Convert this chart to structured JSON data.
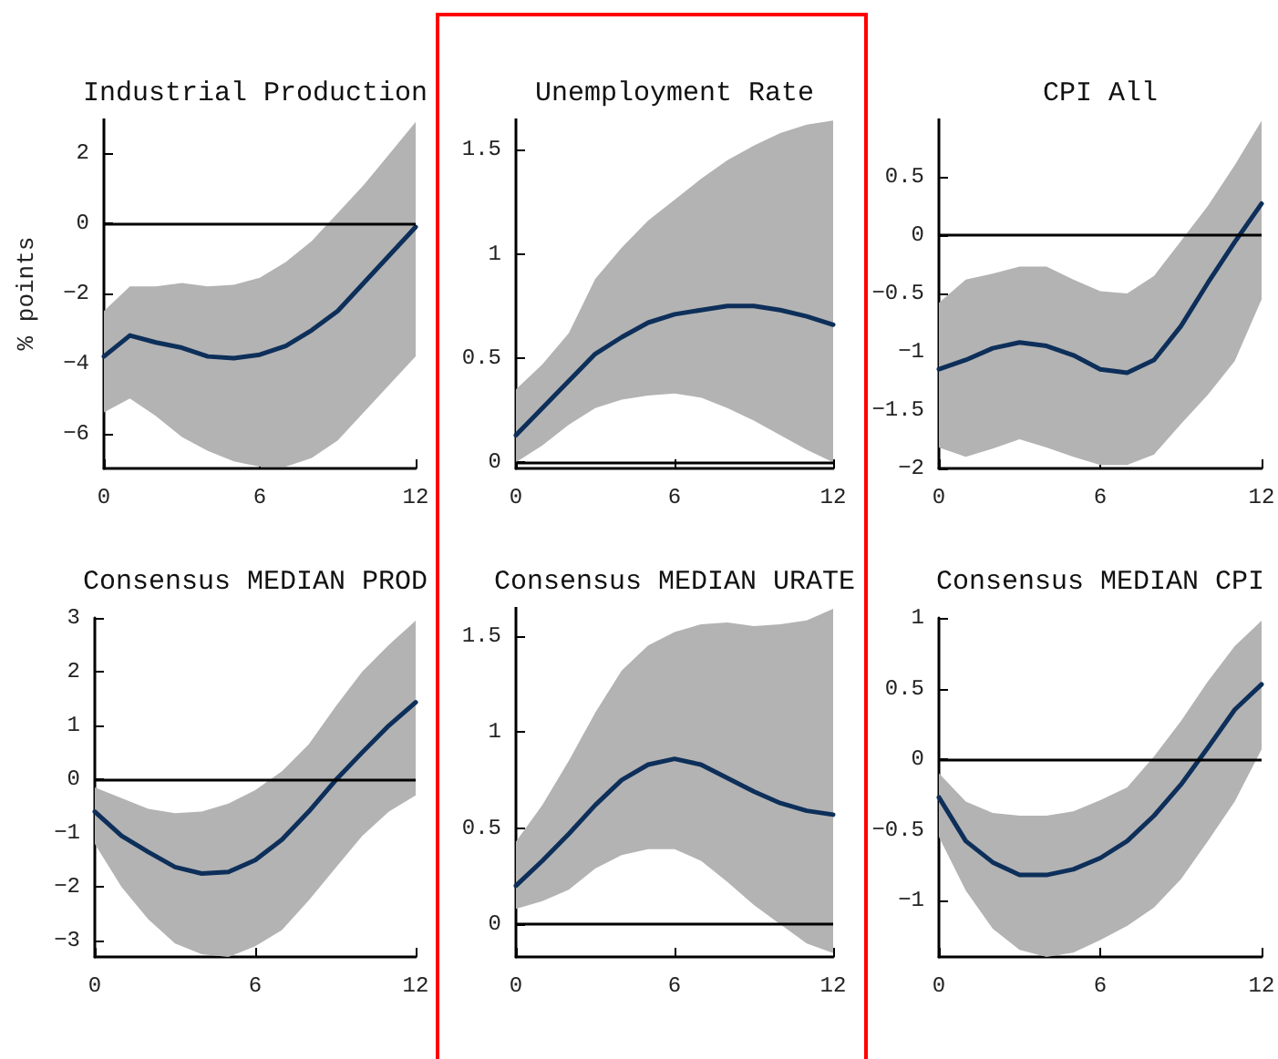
{
  "chart_data": [
    {
      "type": "line",
      "title": "Industrial Production",
      "ylabel": "% points",
      "x": [
        0,
        1,
        2,
        3,
        4,
        5,
        6,
        7,
        8,
        9,
        10,
        11,
        12
      ],
      "xlim": [
        0,
        12
      ],
      "xticks": [
        0,
        6,
        12
      ],
      "ylim": [
        -7,
        3
      ],
      "yticks": [
        -6,
        -4,
        -2,
        0,
        2
      ],
      "grid": false,
      "marker": "none",
      "line_style": "solid",
      "series": [
        {
          "color": "#0d2f5a",
          "values": [
            -3.8,
            -3.2,
            -3.4,
            -3.55,
            -3.8,
            -3.85,
            -3.75,
            -3.5,
            -3.05,
            -2.5,
            -1.7,
            -0.9,
            -0.1
          ],
          "upper": [
            -2.5,
            -1.8,
            -1.8,
            -1.7,
            -1.8,
            -1.75,
            -1.55,
            -1.1,
            -0.5,
            0.3,
            1.1,
            2.0,
            2.9
          ],
          "lower": [
            -5.4,
            -5.0,
            -5.5,
            -6.1,
            -6.5,
            -6.8,
            -6.95,
            -6.95,
            -6.7,
            -6.2,
            -5.4,
            -4.6,
            -3.8
          ]
        }
      ],
      "ref_lines": [
        {
          "axis": "y",
          "value": 0,
          "color": "#000000"
        }
      ]
    },
    {
      "type": "line",
      "title": "Unemployment Rate",
      "x": [
        0,
        1,
        2,
        3,
        4,
        5,
        6,
        7,
        8,
        9,
        10,
        11,
        12
      ],
      "xlim": [
        0,
        12
      ],
      "xticks": [
        0,
        6,
        12
      ],
      "ylim": [
        -0.03,
        1.65
      ],
      "yticks": [
        0,
        0.5,
        1,
        1.5
      ],
      "grid": false,
      "marker": "none",
      "line_style": "solid",
      "series": [
        {
          "color": "#0d2f5a",
          "values": [
            0.13,
            0.26,
            0.39,
            0.52,
            0.6,
            0.67,
            0.71,
            0.73,
            0.75,
            0.75,
            0.73,
            0.7,
            0.66
          ],
          "upper": [
            0.35,
            0.47,
            0.62,
            0.88,
            1.03,
            1.16,
            1.26,
            1.36,
            1.45,
            1.52,
            1.58,
            1.62,
            1.64
          ],
          "lower": [
            0.0,
            0.08,
            0.18,
            0.26,
            0.3,
            0.32,
            0.33,
            0.31,
            0.26,
            0.2,
            0.13,
            0.06,
            0.0
          ]
        }
      ],
      "ref_lines": [
        {
          "axis": "y",
          "value": 0,
          "color": "#000000"
        }
      ]
    },
    {
      "type": "line",
      "title": "CPI All",
      "x": [
        0,
        1,
        2,
        3,
        4,
        5,
        6,
        7,
        8,
        9,
        10,
        11,
        12
      ],
      "xlim": [
        0,
        12
      ],
      "xticks": [
        0,
        6,
        12
      ],
      "ylim": [
        -2,
        1
      ],
      "yticks": [
        -2,
        -1.5,
        -1,
        -0.5,
        0,
        0.5
      ],
      "grid": false,
      "marker": "none",
      "line_style": "solid",
      "series": [
        {
          "color": "#0d2f5a",
          "values": [
            -1.15,
            -1.07,
            -0.97,
            -0.92,
            -0.95,
            -1.03,
            -1.15,
            -1.18,
            -1.07,
            -0.78,
            -0.41,
            -0.06,
            0.27
          ],
          "upper": [
            -0.58,
            -0.38,
            -0.33,
            -0.27,
            -0.27,
            -0.38,
            -0.48,
            -0.5,
            -0.35,
            -0.05,
            0.25,
            0.6,
            0.98
          ],
          "lower": [
            -1.82,
            -1.9,
            -1.83,
            -1.75,
            -1.82,
            -1.9,
            -1.97,
            -1.97,
            -1.88,
            -1.62,
            -1.37,
            -1.08,
            -0.55
          ]
        }
      ],
      "ref_lines": [
        {
          "axis": "y",
          "value": 0,
          "color": "#000000"
        }
      ]
    },
    {
      "type": "line",
      "title": "Consensus MEDIAN PROD",
      "x": [
        0,
        1,
        2,
        3,
        4,
        5,
        6,
        7,
        8,
        9,
        10,
        11,
        12
      ],
      "xlim": [
        0,
        12
      ],
      "xticks": [
        0,
        6,
        12
      ],
      "ylim": [
        -3.3,
        3
      ],
      "yticks": [
        -3,
        -2,
        -1,
        0,
        1,
        2,
        3
      ],
      "grid": false,
      "marker": "none",
      "line_style": "solid",
      "series": [
        {
          "color": "#0d2f5a",
          "values": [
            -0.6,
            -1.05,
            -1.35,
            -1.63,
            -1.75,
            -1.72,
            -1.5,
            -1.12,
            -0.6,
            -0.02,
            0.5,
            1.0,
            1.43
          ],
          "upper": [
            -0.15,
            -0.35,
            -0.55,
            -0.63,
            -0.6,
            -0.45,
            -0.2,
            0.15,
            0.65,
            1.35,
            2.0,
            2.5,
            2.95
          ],
          "lower": [
            -1.2,
            -2.0,
            -2.6,
            -3.05,
            -3.25,
            -3.3,
            -3.1,
            -2.8,
            -2.25,
            -1.65,
            -1.05,
            -0.6,
            -0.3
          ]
        }
      ],
      "ref_lines": [
        {
          "axis": "y",
          "value": 0,
          "color": "#000000"
        }
      ]
    },
    {
      "type": "line",
      "title": "Consensus MEDIAN URATE",
      "x": [
        0,
        1,
        2,
        3,
        4,
        5,
        6,
        7,
        8,
        9,
        10,
        11,
        12
      ],
      "xlim": [
        0,
        12
      ],
      "xticks": [
        0,
        6,
        12
      ],
      "ylim": [
        -0.17,
        1.65
      ],
      "yticks": [
        0,
        0.5,
        1,
        1.5
      ],
      "grid": false,
      "marker": "none",
      "line_style": "solid",
      "series": [
        {
          "color": "#0d2f5a",
          "values": [
            0.2,
            0.33,
            0.47,
            0.62,
            0.75,
            0.83,
            0.86,
            0.83,
            0.76,
            0.69,
            0.63,
            0.59,
            0.57
          ],
          "upper": [
            0.43,
            0.62,
            0.85,
            1.1,
            1.32,
            1.45,
            1.52,
            1.56,
            1.57,
            1.55,
            1.56,
            1.58,
            1.64
          ],
          "lower": [
            0.08,
            0.12,
            0.18,
            0.29,
            0.36,
            0.39,
            0.39,
            0.33,
            0.22,
            0.1,
            0.0,
            -0.1,
            -0.15
          ]
        }
      ],
      "ref_lines": [
        {
          "axis": "y",
          "value": 0,
          "color": "#000000"
        }
      ]
    },
    {
      "type": "line",
      "title": "Consensus MEDIAN CPI",
      "x": [
        0,
        1,
        2,
        3,
        4,
        5,
        6,
        7,
        8,
        9,
        10,
        11,
        12
      ],
      "xlim": [
        0,
        12
      ],
      "xticks": [
        0,
        6,
        12
      ],
      "ylim": [
        -1.4,
        1
      ],
      "yticks": [
        -1,
        -0.5,
        0,
        0.5,
        1
      ],
      "grid": false,
      "marker": "none",
      "line_style": "solid",
      "series": [
        {
          "color": "#0d2f5a",
          "values": [
            -0.27,
            -0.58,
            -0.73,
            -0.82,
            -0.82,
            -0.78,
            -0.7,
            -0.58,
            -0.4,
            -0.18,
            0.08,
            0.35,
            0.53
          ],
          "upper": [
            -0.1,
            -0.3,
            -0.38,
            -0.4,
            -0.4,
            -0.37,
            -0.29,
            -0.2,
            0.02,
            0.27,
            0.55,
            0.8,
            0.98
          ],
          "lower": [
            -0.55,
            -0.93,
            -1.2,
            -1.35,
            -1.4,
            -1.37,
            -1.28,
            -1.18,
            -1.05,
            -0.85,
            -0.58,
            -0.3,
            0.07
          ]
        }
      ],
      "ref_lines": [
        {
          "axis": "y",
          "value": 0,
          "color": "#000000"
        }
      ]
    }
  ]
}
